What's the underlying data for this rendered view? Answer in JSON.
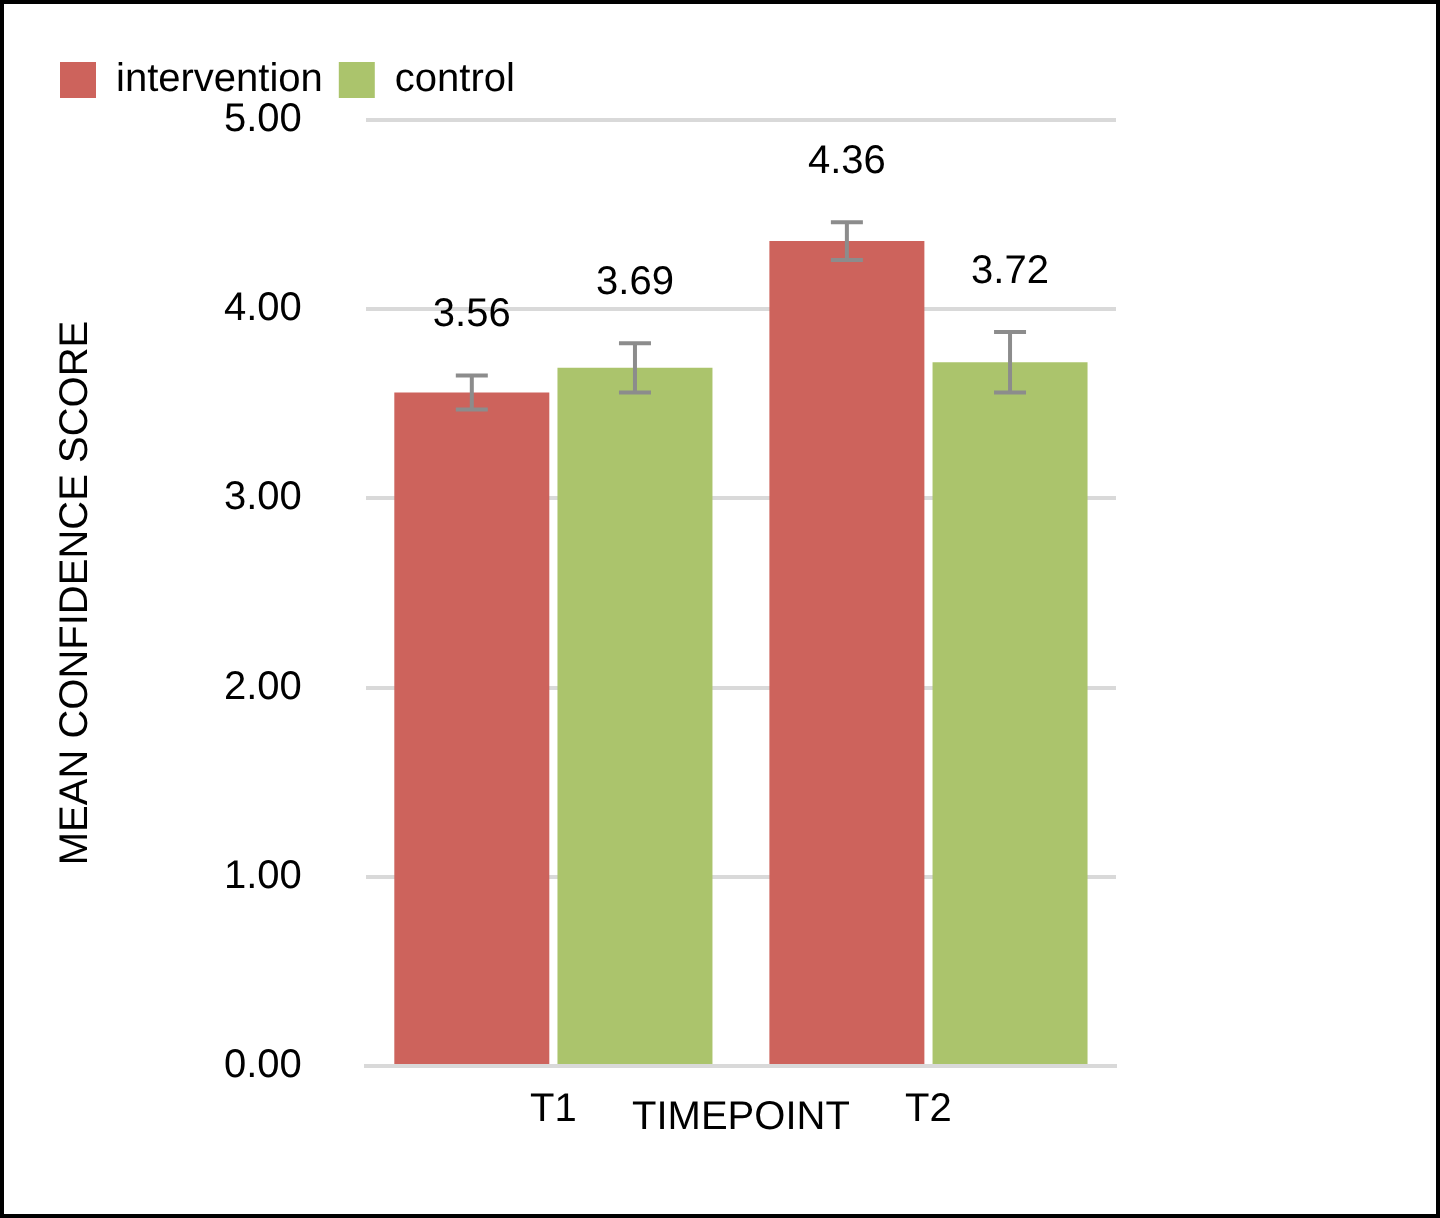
{
  "chart_data": {
    "type": "bar",
    "xlabel": "TIMEPOINT",
    "ylabel": "MEAN CONFIDENCE SCORE",
    "categories": [
      "T1",
      "T2"
    ],
    "series": [
      {
        "name": "intervention",
        "color": "#cd635c",
        "values": [
          3.56,
          4.36
        ],
        "errors": [
          0.09,
          0.1
        ]
      },
      {
        "name": "control",
        "color": "#abc46c",
        "values": [
          3.69,
          3.72
        ],
        "errors": [
          0.13,
          0.16
        ]
      }
    ],
    "ylim": [
      0,
      5
    ],
    "yticks": [
      {
        "value": 0,
        "label": "0.00"
      },
      {
        "value": 1,
        "label": "1.00"
      },
      {
        "value": 2,
        "label": "2.00"
      },
      {
        "value": 3,
        "label": "3.00"
      },
      {
        "value": 4,
        "label": "4.00"
      },
      {
        "value": 5,
        "label": "5.00"
      }
    ],
    "grid": "y",
    "legend": "top left",
    "data_labels": true
  }
}
